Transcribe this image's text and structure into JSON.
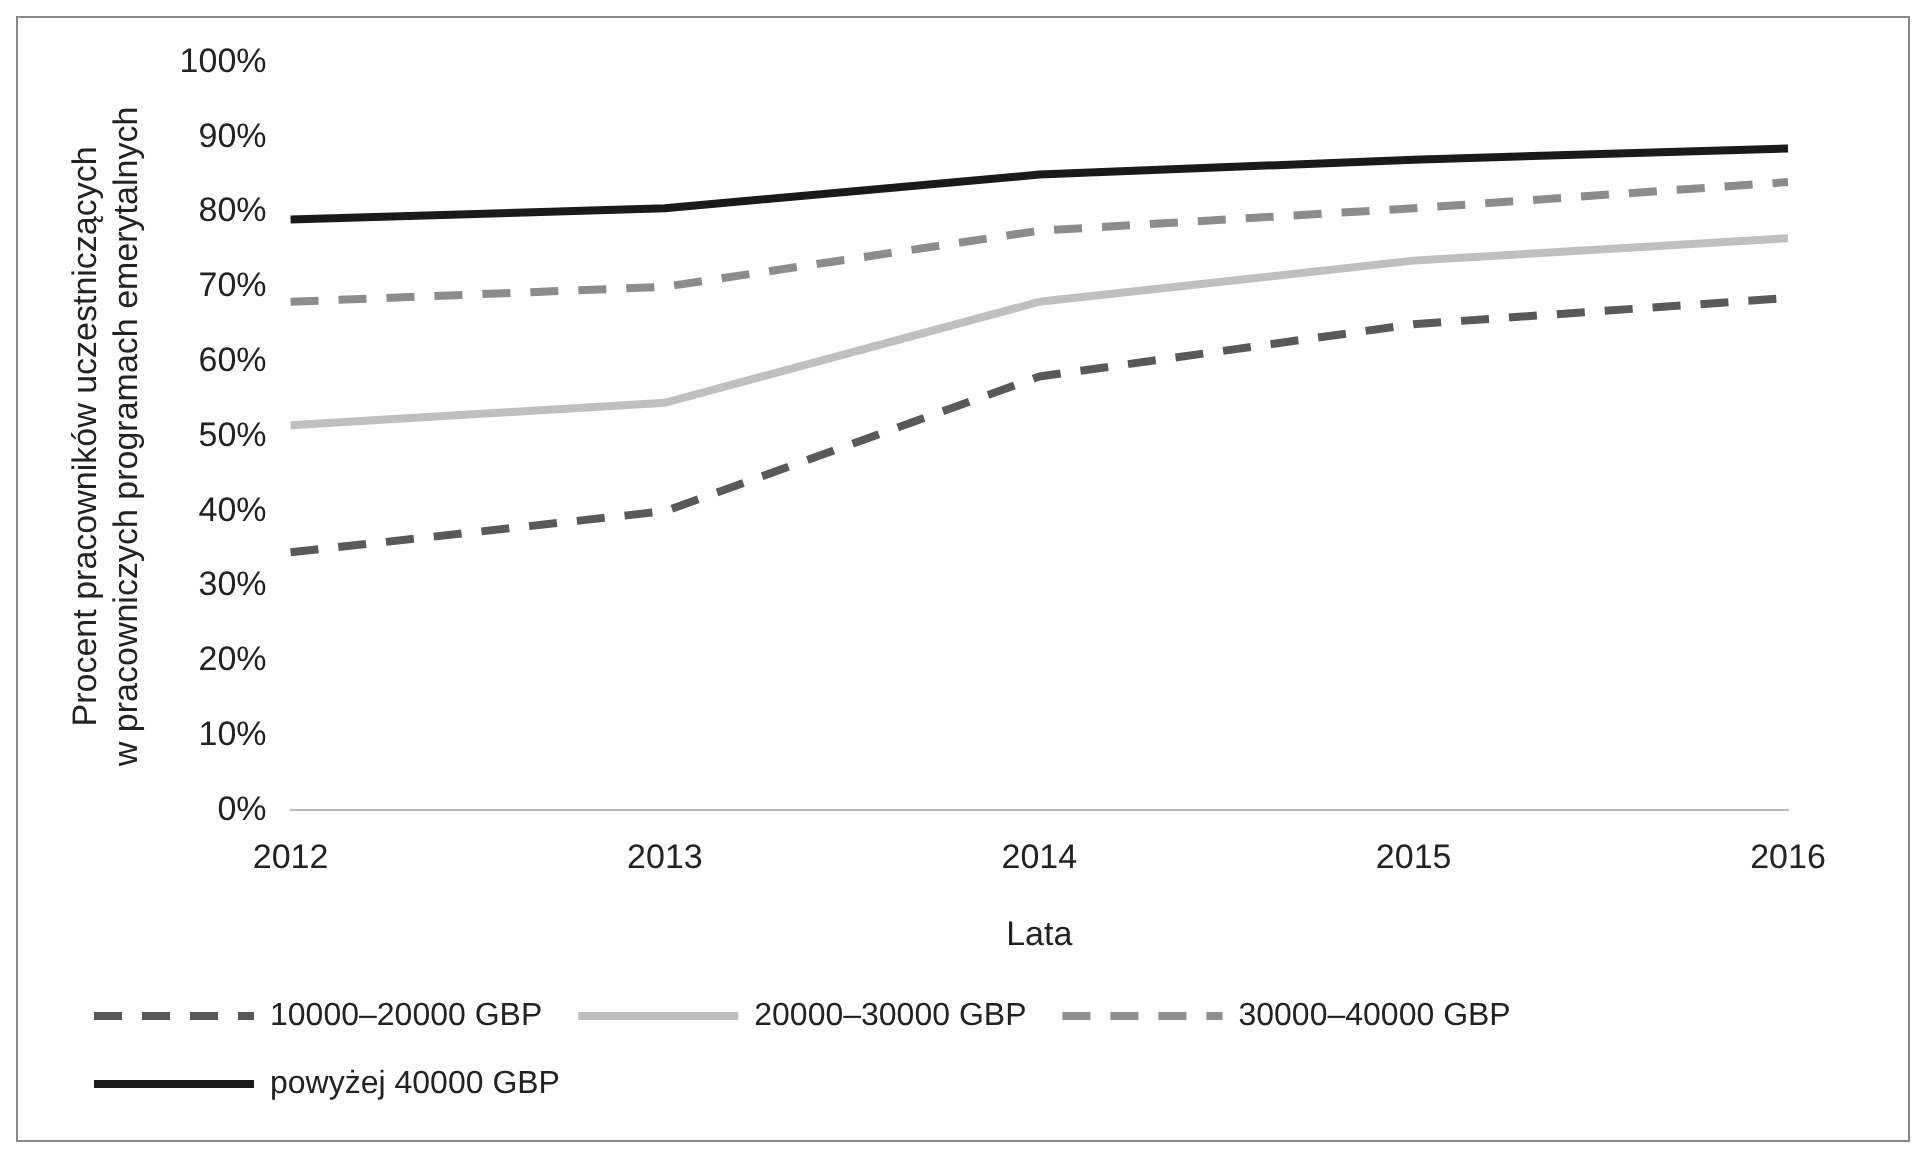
{
  "chart_data": {
    "type": "line",
    "xlabel": "Lata",
    "ylabel": "Procent pracowników uczestniczących\nw pracowniczych programach emerytalnych",
    "categories": [
      "2012",
      "2013",
      "2014",
      "2015",
      "2016"
    ],
    "series": [
      {
        "name": "10000–20000 GBP",
        "color": "#595959",
        "line_style": "dashed",
        "values": [
          34.5,
          40,
          58,
          65,
          68.5
        ]
      },
      {
        "name": "20000–30000 GBP",
        "color": "#bfbfbf",
        "line_style": "solid",
        "values": [
          51.5,
          54.5,
          68,
          73.5,
          76.5
        ]
      },
      {
        "name": "30000–40000 GBP",
        "color": "#8c8c8c",
        "line_style": "dashed",
        "values": [
          68,
          70,
          77.5,
          80.5,
          84
        ]
      },
      {
        "name": "powyżej 40000 GBP",
        "color": "#1a1a1a",
        "line_style": "solid",
        "values": [
          79,
          80.5,
          85,
          87,
          88.5
        ]
      }
    ],
    "ylim": [
      0,
      100
    ],
    "yticks": [
      {
        "value": 0,
        "label": "0%"
      },
      {
        "value": 10,
        "label": "10%"
      },
      {
        "value": 20,
        "label": "20%"
      },
      {
        "value": 30,
        "label": "30%"
      },
      {
        "value": 40,
        "label": "40%"
      },
      {
        "value": 50,
        "label": "50%"
      },
      {
        "value": 60,
        "label": "60%"
      },
      {
        "value": 70,
        "label": "70%"
      },
      {
        "value": 80,
        "label": "80%"
      },
      {
        "value": 90,
        "label": "90%"
      },
      {
        "value": 100,
        "label": "100%"
      }
    ],
    "grid": false,
    "legend": "bottom",
    "marker": "none"
  }
}
